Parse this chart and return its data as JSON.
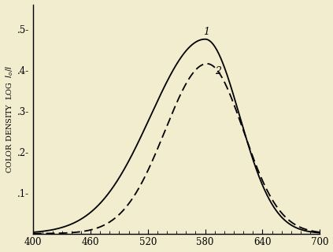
{
  "title": "",
  "xlabel": "",
  "ylabel": "COLOR DENSITY  LOG  I./I",
  "xlim": [
    400,
    700
  ],
  "ylim": [
    0,
    0.56
  ],
  "xticks": [
    400,
    460,
    520,
    580,
    640,
    700
  ],
  "yticks": [
    0.1,
    0.2,
    0.3,
    0.4,
    0.5
  ],
  "ytick_labels": [
    ".1-",
    ".2-",
    ".3-",
    ".4-",
    ".5-"
  ],
  "background_color": "#f2edcf",
  "curve1_peak_x": 580,
  "curve1_peak_y": 0.475,
  "curve2_peak_x": 582,
  "curve2_peak_y": 0.415,
  "label1": "1",
  "label2": "2"
}
